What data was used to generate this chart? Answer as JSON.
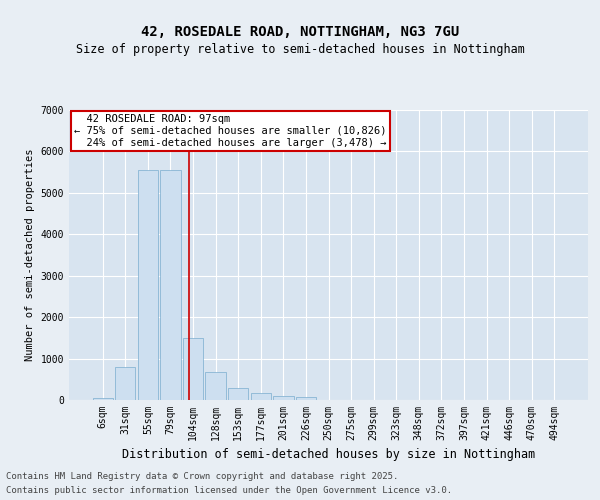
{
  "title1": "42, ROSEDALE ROAD, NOTTINGHAM, NG3 7GU",
  "title2": "Size of property relative to semi-detached houses in Nottingham",
  "xlabel": "Distribution of semi-detached houses by size in Nottingham",
  "ylabel": "Number of semi-detached properties",
  "footer1": "Contains HM Land Registry data © Crown copyright and database right 2025.",
  "footer2": "Contains public sector information licensed under the Open Government Licence v3.0.",
  "categories": [
    "6sqm",
    "31sqm",
    "55sqm",
    "79sqm",
    "104sqm",
    "128sqm",
    "153sqm",
    "177sqm",
    "201sqm",
    "226sqm",
    "250sqm",
    "275sqm",
    "299sqm",
    "323sqm",
    "348sqm",
    "372sqm",
    "397sqm",
    "421sqm",
    "446sqm",
    "470sqm",
    "494sqm"
  ],
  "values": [
    50,
    800,
    5550,
    5550,
    1500,
    680,
    280,
    160,
    100,
    70,
    0,
    0,
    0,
    0,
    0,
    0,
    0,
    0,
    0,
    0,
    0
  ],
  "bar_color": "#cddff0",
  "bar_edge_color": "#7aadce",
  "property_label": "42 ROSEDALE ROAD: 97sqm",
  "pct_smaller": 75,
  "n_smaller": 10826,
  "pct_larger": 24,
  "n_larger": 3478,
  "vline_color": "#cc0000",
  "vline_x": 3.82,
  "annotation_box_color": "#cc0000",
  "ylim": [
    0,
    7000
  ],
  "yticks": [
    0,
    1000,
    2000,
    3000,
    4000,
    5000,
    6000,
    7000
  ],
  "bg_color": "#e8eef4",
  "plot_bg_color": "#d8e4f0",
  "grid_color": "#c8d4e0",
  "title1_fontsize": 10,
  "title2_fontsize": 8.5,
  "xlabel_fontsize": 8.5,
  "ylabel_fontsize": 7.5,
  "tick_fontsize": 7,
  "ann_fontsize": 7.5,
  "footer_fontsize": 6.5
}
